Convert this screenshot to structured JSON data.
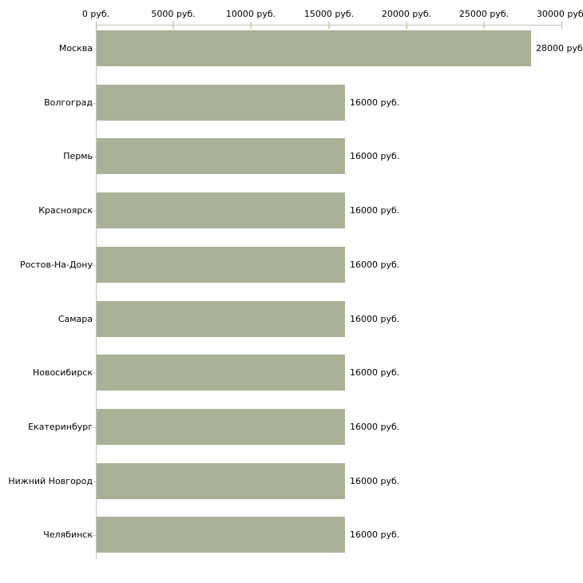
{
  "chart_data": {
    "type": "bar",
    "orientation": "horizontal",
    "title": "",
    "categories": [
      "Москва",
      "Волгоград",
      "Пермь",
      "Красноярск",
      "Ростов-На-Дону",
      "Самара",
      "Новосибирск",
      "Екатеринбург",
      "Нижний Новгород",
      "Челябинск"
    ],
    "values": [
      28000,
      16000,
      16000,
      16000,
      16000,
      16000,
      16000,
      16000,
      16000,
      16000
    ],
    "value_labels": [
      "28000 руб.",
      "16000 руб.",
      "16000 руб.",
      "16000 руб.",
      "16000 руб.",
      "16000 руб.",
      "16000 руб.",
      "16000 руб.",
      "16000 руб.",
      "16000 руб."
    ],
    "unit": "руб.",
    "x_axis": {
      "position": "top",
      "min": 0,
      "max": 30000,
      "ticks": [
        0,
        5000,
        10000,
        15000,
        20000,
        25000,
        30000
      ],
      "tick_labels": [
        "0 руб.",
        "5000 руб.",
        "10000 руб.",
        "15000 руб.",
        "20000 руб.",
        "25000 руб.",
        "30000 руб."
      ]
    },
    "legend": null,
    "grid": false,
    "colors": {
      "bar": "#aab296",
      "axis_line": "#c2c2c2",
      "minor_tick": "#d4d6ac",
      "end_tick": "#b5b5b5",
      "text": "#000000",
      "background": "#ffffff"
    }
  }
}
